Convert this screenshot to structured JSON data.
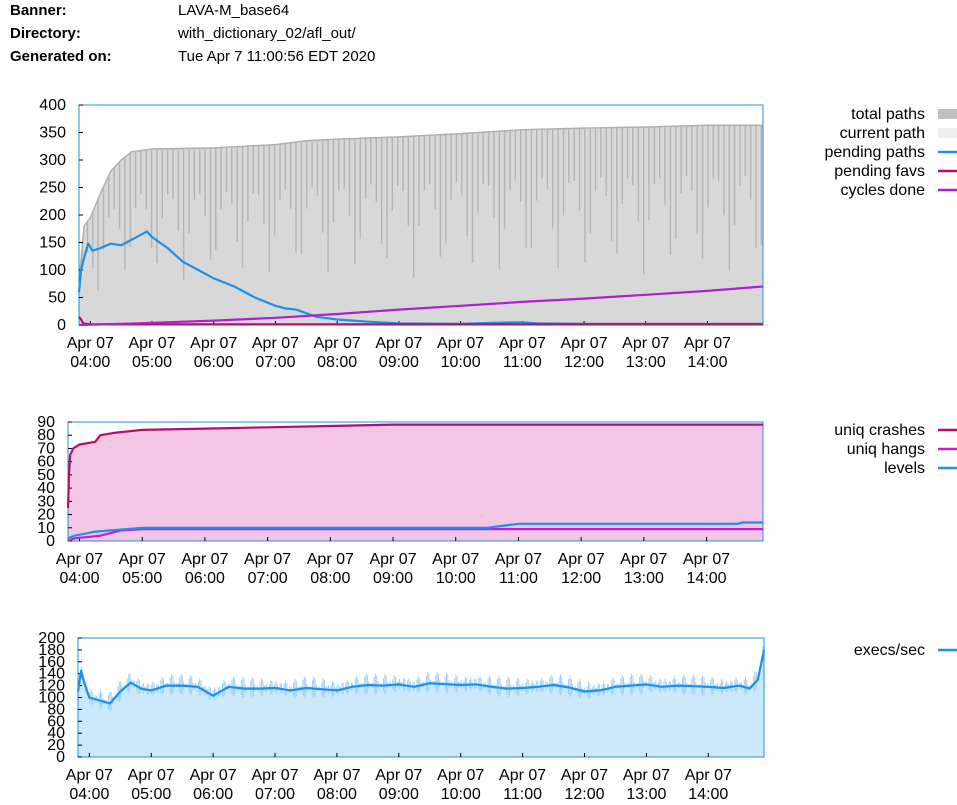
{
  "header": [
    {
      "key": "Banner:",
      "value": "LAVA-M_base64"
    },
    {
      "key": "Directory:",
      "value": "with_dictionary_02/afl_out/"
    },
    {
      "key": "Generated on:",
      "value": "Tue Apr 7 11:00:56 EDT 2020"
    }
  ],
  "chart_data": [
    {
      "type": "area",
      "x_ticks": [
        "Apr 07 04:00",
        "Apr 07 05:00",
        "Apr 07 06:00",
        "Apr 07 07:00",
        "Apr 07 08:00",
        "Apr 07 09:00",
        "Apr 07 10:00",
        "Apr 07 11:00",
        "Apr 07 12:00",
        "Apr 07 13:00",
        "Apr 07 14:00"
      ],
      "xlim": [
        "Apr 07 03:49",
        "Apr 07 14:54"
      ],
      "ylim": [
        0,
        400
      ],
      "yticks": [
        0,
        50,
        100,
        150,
        200,
        250,
        300,
        350,
        400
      ],
      "legend_position": "right",
      "series": [
        {
          "name": "total paths",
          "color": "#c0c0c0",
          "points": [
            [
              "03:49",
              80
            ],
            [
              "03:54",
              180
            ],
            [
              "04:00",
              195
            ],
            [
              "04:10",
              240
            ],
            [
              "04:20",
              280
            ],
            [
              "04:30",
              300
            ],
            [
              "04:40",
              315
            ],
            [
              "05:00",
              320
            ],
            [
              "06:00",
              322
            ],
            [
              "07:00",
              328
            ],
            [
              "07:30",
              335
            ],
            [
              "08:00",
              338
            ],
            [
              "09:00",
              342
            ],
            [
              "10:00",
              348
            ],
            [
              "11:00",
              355
            ],
            [
              "12:00",
              358
            ],
            [
              "13:00",
              360
            ],
            [
              "14:00",
              363
            ],
            [
              "14:54",
              363
            ]
          ]
        },
        {
          "name": "current path",
          "color": "#eeeeee",
          "points": []
        },
        {
          "name": "pending paths",
          "color": "#1e90e8",
          "points": [
            [
              "03:49",
              60
            ],
            [
              "03:51",
              100
            ],
            [
              "03:55",
              130
            ],
            [
              "03:58",
              148
            ],
            [
              "04:02",
              135
            ],
            [
              "04:10",
              140
            ],
            [
              "04:20",
              148
            ],
            [
              "04:30",
              145
            ],
            [
              "04:40",
              155
            ],
            [
              "04:50",
              165
            ],
            [
              "04:55",
              170
            ],
            [
              "05:00",
              160
            ],
            [
              "05:15",
              140
            ],
            [
              "05:30",
              115
            ],
            [
              "05:45",
              100
            ],
            [
              "06:00",
              85
            ],
            [
              "06:20",
              70
            ],
            [
              "06:40",
              50
            ],
            [
              "07:00",
              35
            ],
            [
              "07:10",
              30
            ],
            [
              "07:20",
              28
            ],
            [
              "07:40",
              15
            ],
            [
              "08:00",
              10
            ],
            [
              "08:30",
              6
            ],
            [
              "09:00",
              3
            ],
            [
              "10:00",
              2
            ],
            [
              "10:30",
              4
            ],
            [
              "11:00",
              5
            ],
            [
              "11:15",
              3
            ],
            [
              "12:00",
              2
            ],
            [
              "13:00",
              2
            ],
            [
              "14:00",
              2
            ],
            [
              "14:54",
              2
            ]
          ]
        },
        {
          "name": "pending favs",
          "color": "#b0106a",
          "points": [
            [
              "03:49",
              15
            ],
            [
              "03:51",
              10
            ],
            [
              "03:53",
              3
            ],
            [
              "04:00",
              1
            ],
            [
              "05:00",
              1
            ],
            [
              "07:00",
              1
            ],
            [
              "14:54",
              1
            ]
          ]
        },
        {
          "name": "cycles done",
          "color": "#b020d0",
          "points": [
            [
              "03:49",
              0
            ],
            [
              "04:30",
              2
            ],
            [
              "05:00",
              4
            ],
            [
              "06:00",
              8
            ],
            [
              "07:00",
              13
            ],
            [
              "08:00",
              20
            ],
            [
              "09:00",
              28
            ],
            [
              "10:00",
              35
            ],
            [
              "11:00",
              42
            ],
            [
              "12:00",
              48
            ],
            [
              "13:00",
              55
            ],
            [
              "14:00",
              62
            ],
            [
              "14:54",
              70
            ]
          ]
        }
      ]
    },
    {
      "type": "area",
      "x_ticks": [
        "Apr 07 04:00",
        "Apr 07 05:00",
        "Apr 07 06:00",
        "Apr 07 07:00",
        "Apr 07 08:00",
        "Apr 07 09:00",
        "Apr 07 10:00",
        "Apr 07 11:00",
        "Apr 07 12:00",
        "Apr 07 13:00",
        "Apr 07 14:00"
      ],
      "xlim": [
        "Apr 07 03:49",
        "Apr 07 14:54"
      ],
      "ylim": [
        0,
        90
      ],
      "yticks": [
        0,
        10,
        20,
        30,
        40,
        50,
        60,
        70,
        80,
        90
      ],
      "legend_position": "right",
      "series": [
        {
          "name": "uniq crashes",
          "color": "#b0106a",
          "points": [
            [
              "03:49",
              25
            ],
            [
              "03:50",
              50
            ],
            [
              "03:51",
              65
            ],
            [
              "03:54",
              70
            ],
            [
              "04:00",
              73
            ],
            [
              "04:15",
              75
            ],
            [
              "04:20",
              80
            ],
            [
              "04:35",
              82
            ],
            [
              "05:00",
              84
            ],
            [
              "06:00",
              85
            ],
            [
              "07:00",
              86
            ],
            [
              "08:00",
              87
            ],
            [
              "09:00",
              88
            ],
            [
              "14:54",
              88
            ]
          ]
        },
        {
          "name": "uniq hangs",
          "color": "#c020d0",
          "points": [
            [
              "03:49",
              0
            ],
            [
              "03:55",
              2
            ],
            [
              "04:20",
              4
            ],
            [
              "04:30",
              6
            ],
            [
              "04:40",
              8
            ],
            [
              "05:00",
              9
            ],
            [
              "14:54",
              9
            ]
          ]
        },
        {
          "name": "levels",
          "color": "#1e90e8",
          "points": [
            [
              "03:49",
              2
            ],
            [
              "03:55",
              4
            ],
            [
              "04:15",
              7
            ],
            [
              "04:30",
              8
            ],
            [
              "04:45",
              9
            ],
            [
              "05:00",
              10
            ],
            [
              "10:30",
              10
            ],
            [
              "10:50",
              12
            ],
            [
              "11:00",
              13
            ],
            [
              "14:30",
              13
            ],
            [
              "14:35",
              14
            ],
            [
              "14:54",
              14
            ]
          ]
        }
      ]
    },
    {
      "type": "area",
      "x_ticks": [
        "Apr 07 04:00",
        "Apr 07 05:00",
        "Apr 07 06:00",
        "Apr 07 07:00",
        "Apr 07 08:00",
        "Apr 07 09:00",
        "Apr 07 10:00",
        "Apr 07 11:00",
        "Apr 07 12:00",
        "Apr 07 13:00",
        "Apr 07 14:00"
      ],
      "xlim": [
        "Apr 07 03:49",
        "Apr 07 14:54"
      ],
      "ylim": [
        0,
        200
      ],
      "yticks": [
        0,
        20,
        40,
        60,
        80,
        100,
        120,
        140,
        160,
        180,
        200
      ],
      "legend_position": "right",
      "series": [
        {
          "name": "execs/sec",
          "color": "#1e90e8",
          "points": [
            [
              "03:49",
              110
            ],
            [
              "03:52",
              145
            ],
            [
              "03:55",
              125
            ],
            [
              "04:00",
              100
            ],
            [
              "04:10",
              95
            ],
            [
              "04:20",
              90
            ],
            [
              "04:30",
              110
            ],
            [
              "04:40",
              125
            ],
            [
              "04:50",
              115
            ],
            [
              "05:00",
              112
            ],
            [
              "05:15",
              120
            ],
            [
              "05:30",
              120
            ],
            [
              "05:45",
              118
            ],
            [
              "06:00",
              103
            ],
            [
              "06:15",
              118
            ],
            [
              "06:30",
              115
            ],
            [
              "06:45",
              115
            ],
            [
              "07:00",
              116
            ],
            [
              "07:15",
              112
            ],
            [
              "07:30",
              116
            ],
            [
              "07:45",
              114
            ],
            [
              "08:00",
              112
            ],
            [
              "08:15",
              118
            ],
            [
              "08:30",
              121
            ],
            [
              "08:45",
              120
            ],
            [
              "09:00",
              122
            ],
            [
              "09:15",
              118
            ],
            [
              "09:30",
              124
            ],
            [
              "10:00",
              121
            ],
            [
              "10:15",
              122
            ],
            [
              "10:30",
              118
            ],
            [
              "10:45",
              115
            ],
            [
              "11:00",
              116
            ],
            [
              "11:15",
              118
            ],
            [
              "11:30",
              121
            ],
            [
              "11:45",
              117
            ],
            [
              "12:00",
              110
            ],
            [
              "12:15",
              112
            ],
            [
              "12:30",
              118
            ],
            [
              "12:45",
              120
            ],
            [
              "13:00",
              122
            ],
            [
              "13:15",
              118
            ],
            [
              "13:30",
              120
            ],
            [
              "13:45",
              119
            ],
            [
              "14:00",
              118
            ],
            [
              "14:15",
              116
            ],
            [
              "14:30",
              120
            ],
            [
              "14:40",
              115
            ],
            [
              "14:48",
              130
            ],
            [
              "14:54",
              180
            ]
          ]
        }
      ]
    }
  ]
}
